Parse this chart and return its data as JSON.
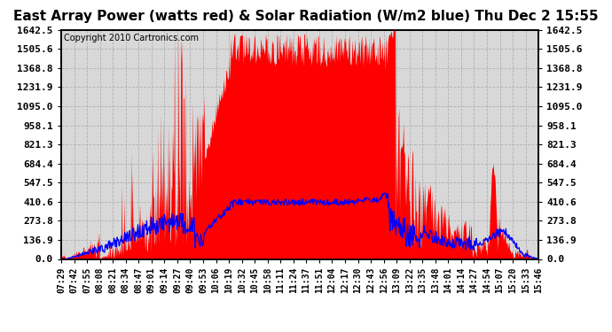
{
  "title": "East Array Power (watts red) & Solar Radiation (W/m2 blue) Thu Dec 2 15:55",
  "copyright": "Copyright 2010 Cartronics.com",
  "yticks": [
    0.0,
    136.9,
    273.8,
    410.6,
    547.5,
    684.4,
    821.3,
    958.1,
    1095.0,
    1231.9,
    1368.8,
    1505.6,
    1642.5
  ],
  "ymax": 1642.5,
  "ymin": 0.0,
  "background_color": "#ffffff",
  "plot_bg_color": "#d8d8d8",
  "grid_color": "#b0b0b0",
  "red_color": "#ff0000",
  "blue_color": "#0000ff",
  "title_fontsize": 11,
  "copyright_fontsize": 7,
  "tick_fontsize": 8,
  "xtick_labels": [
    "07:29",
    "07:42",
    "07:55",
    "08:08",
    "08:21",
    "08:34",
    "08:47",
    "09:01",
    "09:14",
    "09:27",
    "09:40",
    "09:53",
    "10:06",
    "10:19",
    "10:32",
    "10:45",
    "10:58",
    "11:11",
    "11:24",
    "11:37",
    "11:51",
    "12:04",
    "12:17",
    "12:30",
    "12:43",
    "12:56",
    "13:09",
    "13:22",
    "13:35",
    "13:48",
    "14:01",
    "14:14",
    "14:27",
    "14:54",
    "15:07",
    "15:20",
    "15:33",
    "15:46"
  ]
}
